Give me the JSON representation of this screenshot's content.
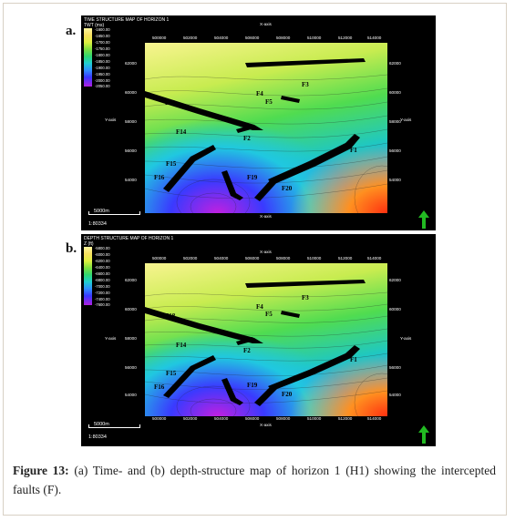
{
  "figure": {
    "panel_a": {
      "label": "a.",
      "title": "TIME STRUCTURE MAP OF HORIZON 1",
      "subtitle": "TWT (ms)",
      "legend_ticks": [
        "-1600.00",
        "-1650.00",
        "-1700.00",
        "-1750.00",
        "-1800.00",
        "-1850.00",
        "-1900.00",
        "-1950.00",
        "-2000.00",
        "-2050.00"
      ],
      "x_axis_label": "X-axis",
      "y_axis_label": "Y-axis",
      "x_ticks": [
        "500000",
        "502000",
        "504000",
        "506000",
        "508000",
        "510000",
        "512000",
        "514000"
      ],
      "y_ticks": [
        "62000",
        "60000",
        "58000",
        "56000",
        "54000"
      ],
      "scale_text": "5000m",
      "scale_ratio": "1:80334",
      "faults": [
        "F1",
        "F2",
        "F3",
        "F4",
        "F5",
        "F14",
        "F15",
        "F16",
        "F18",
        "F19",
        "F20"
      ]
    },
    "panel_b": {
      "label": "b.",
      "title": "DEPTH STRUCTURE MAP OF HORIZON 1",
      "subtitle": "Z (ft)",
      "legend_ticks": [
        "-5800.00",
        "-6000.00",
        "-6200.00",
        "-6400.00",
        "-6600.00",
        "-6800.00",
        "-7000.00",
        "-7200.00",
        "-7400.00",
        "-7600.00"
      ],
      "x_axis_label": "X-axis",
      "y_axis_label": "Y-axis",
      "x_ticks": [
        "500000",
        "502000",
        "504000",
        "506000",
        "508000",
        "510000",
        "512000",
        "514000"
      ],
      "y_ticks": [
        "62000",
        "60000",
        "58000",
        "56000",
        "54000"
      ],
      "scale_text": "5000m",
      "scale_ratio": "1:80334",
      "faults": [
        "F1",
        "F2",
        "F3",
        "F4",
        "F5",
        "F14",
        "F15",
        "F16",
        "F18",
        "F19",
        "F20"
      ]
    },
    "caption": {
      "label": "Figure 13:",
      "text": "(a) Time- and (b) depth-structure map of horizon 1 (H1) showing the intercepted faults (F)."
    },
    "colors": {
      "high": "#f5f0a0",
      "mid": "#43d84a",
      "low": "#3a3aff",
      "deep": "#c020e0",
      "fault": "#000000",
      "north_arrow": "#22bb22"
    }
  }
}
